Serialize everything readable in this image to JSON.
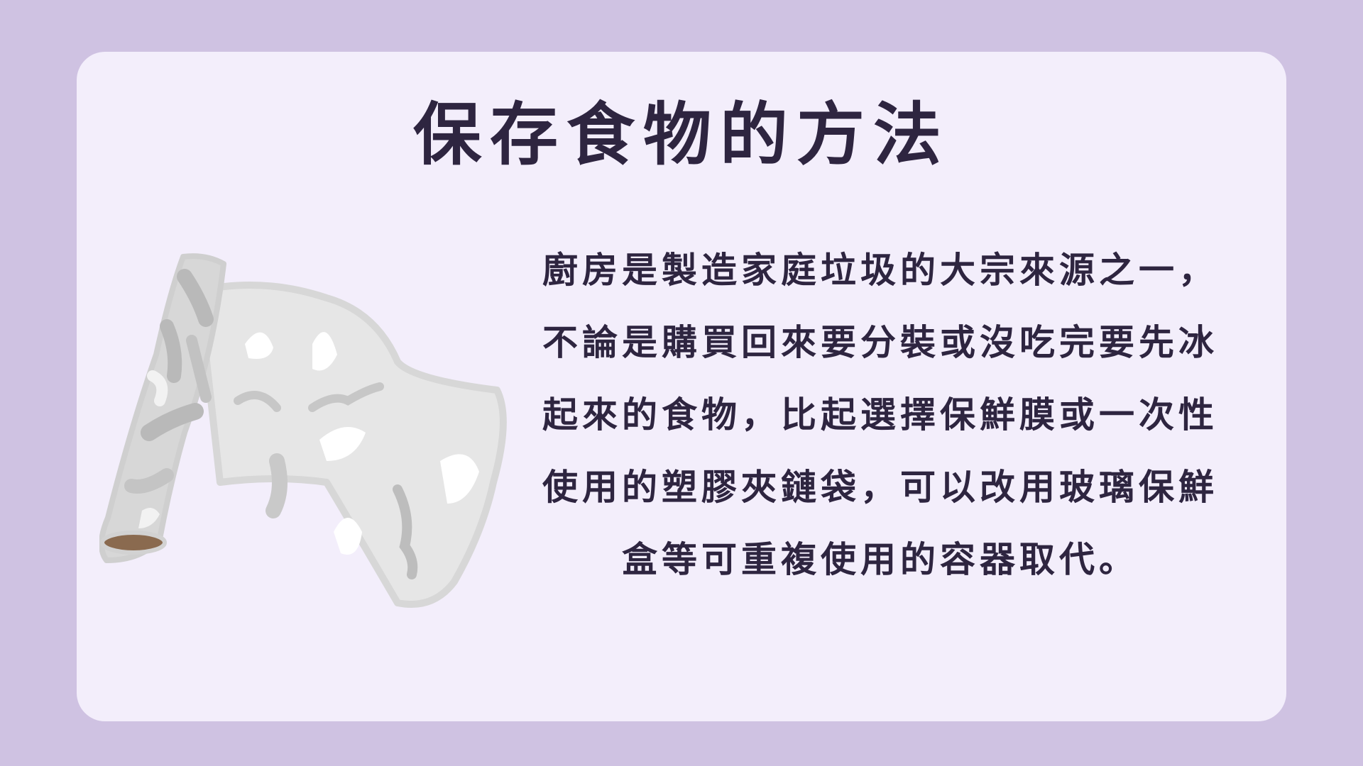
{
  "slide": {
    "title": "保存食物的方法",
    "body": "廚房是製造家庭垃圾的大宗來源之一，不論是購買回來要分裝或沒吃完要先冰起來的食物，比起選擇保鮮膜或一次性使用的塑膠夾鏈袋，可以改用玻璃保鮮盒等可重複使用的容器取代。"
  },
  "colors": {
    "page_background": "#cfc2e2",
    "card_background": "#f3eefb",
    "text": "#2e2540"
  }
}
